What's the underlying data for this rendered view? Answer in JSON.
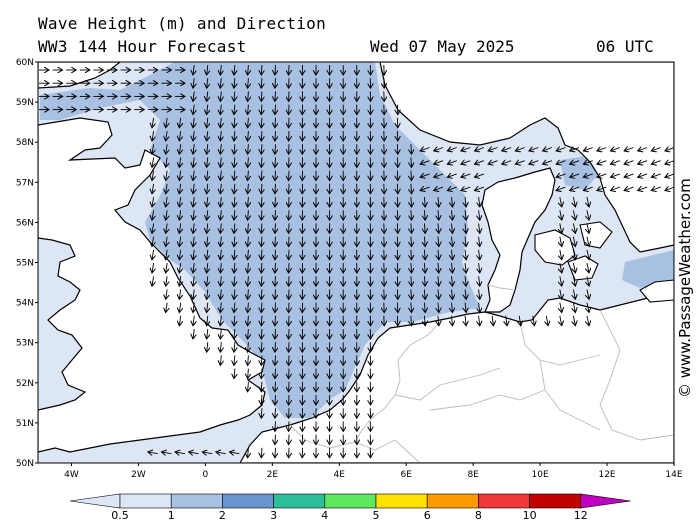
{
  "header": {
    "title": "Wave Height (m) and Direction",
    "subtitle": "WW3 144 Hour Forecast",
    "date": "Wed 07 May 2025",
    "time": "06 UTC"
  },
  "credit": "© www.PassageWeather.com",
  "axes": {
    "lat_range": [
      50,
      60
    ],
    "lon_range": [
      -5,
      14
    ],
    "lat_ticks": [
      {
        "value": 60,
        "label": "60N"
      },
      {
        "value": 59,
        "label": "59N"
      },
      {
        "value": 58,
        "label": "58N"
      },
      {
        "value": 57,
        "label": "57N"
      },
      {
        "value": 56,
        "label": "56N"
      },
      {
        "value": 55,
        "label": "55N"
      },
      {
        "value": 54,
        "label": "54N"
      },
      {
        "value": 53,
        "label": "53N"
      },
      {
        "value": 52,
        "label": "52N"
      },
      {
        "value": 51,
        "label": "51N"
      },
      {
        "value": 50,
        "label": "50N"
      }
    ],
    "lon_ticks": [
      {
        "value": -4,
        "label": "4W"
      },
      {
        "value": -2,
        "label": "2W"
      },
      {
        "value": 0,
        "label": "0"
      },
      {
        "value": 2,
        "label": "2E"
      },
      {
        "value": 4,
        "label": "4E"
      },
      {
        "value": 6,
        "label": "6E"
      },
      {
        "value": 8,
        "label": "8E"
      },
      {
        "value": 10,
        "label": "10E"
      },
      {
        "value": 12,
        "label": "12E"
      },
      {
        "value": 14,
        "label": "14E"
      }
    ]
  },
  "colorbar": {
    "labels": [
      "0.5",
      "1",
      "2",
      "3",
      "4",
      "5",
      "6",
      "8",
      "10",
      "12"
    ],
    "colors": [
      "#dde6f5",
      "#a8c0e2",
      "#6a94cd",
      "#2cbf9a",
      "#5de85d",
      "#ffe100",
      "#ff9a00",
      "#f03838",
      "#c20000",
      "#c000c0"
    ]
  },
  "colors": {
    "land": "#ffffff",
    "sea_low": "#dde6f5",
    "sea_mid": "#a8c0e2",
    "coast": "#000000",
    "border": "#bbbbbb"
  }
}
